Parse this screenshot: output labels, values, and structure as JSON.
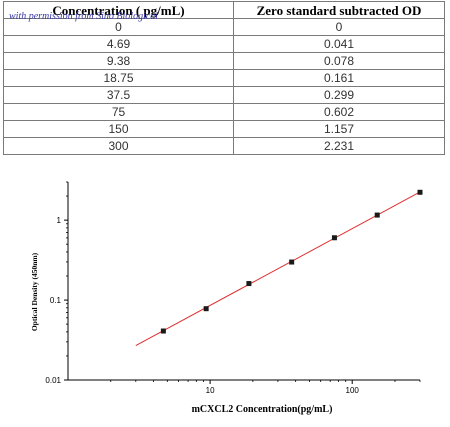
{
  "table": {
    "headers": [
      "Concentration ( pg/mL)",
      "Zero standard subtracted OD"
    ],
    "watermark": "with permission from Sino Biological",
    "rows": [
      [
        "0",
        "0"
      ],
      [
        "4.69",
        "0.041"
      ],
      [
        "9.38",
        "0.078"
      ],
      [
        "18.75",
        "0.161"
      ],
      [
        "37.5",
        "0.299"
      ],
      [
        "75",
        "0.602"
      ],
      [
        "150",
        "1.157"
      ],
      [
        "300",
        "2.231"
      ]
    ]
  },
  "chart_data": {
    "type": "scatter",
    "xscale": "log",
    "yscale": "log",
    "xlim": [
      1,
      300
    ],
    "ylim": [
      0.01,
      3
    ],
    "xticks": [
      10,
      100
    ],
    "xticklabels": [
      "10",
      "100"
    ],
    "yticks": [
      0.01,
      0.1,
      1
    ],
    "yticklabels": [
      "0.01",
      "0.1",
      "1"
    ],
    "xlabel": "mCXCL2   Concentration(pg/mL)",
    "ylabel": "Optical Density (450nm)",
    "points": [
      {
        "x": 4.69,
        "y": 0.041
      },
      {
        "x": 9.38,
        "y": 0.078
      },
      {
        "x": 18.75,
        "y": 0.161
      },
      {
        "x": 37.5,
        "y": 0.299
      },
      {
        "x": 75,
        "y": 0.602
      },
      {
        "x": 150,
        "y": 1.157
      },
      {
        "x": 300,
        "y": 2.231
      }
    ],
    "fit_line": {
      "x": [
        3,
        300
      ],
      "y": [
        0.027,
        2.25
      ]
    },
    "grid": false,
    "colors": {
      "marker": "#1a1a1a",
      "fit_line": "#e03030"
    }
  }
}
